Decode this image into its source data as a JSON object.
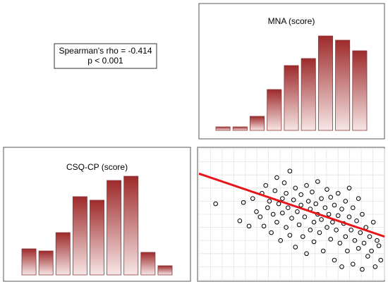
{
  "annotation": {
    "lines": [
      "Spearman's rho = -0.414",
      "p < 0.001"
    ]
  },
  "chart_data": [
    {
      "type": "bar",
      "title": "MNA (score)",
      "categories": [
        null,
        null,
        null,
        null,
        null,
        null,
        null,
        null,
        null
      ],
      "values": [
        5,
        5,
        20,
        58,
        92,
        102,
        134,
        128,
        113
      ],
      "color": "#9e2a2b",
      "ylim": [
        0,
        150
      ]
    },
    {
      "type": "bar",
      "title": "CSQ-CP (score)",
      "categories": [
        null,
        null,
        null,
        null,
        null,
        null,
        null,
        null,
        null
      ],
      "values": [
        37,
        34,
        60,
        111,
        106,
        134,
        140,
        32,
        13
      ],
      "color": "#9e2a2b",
      "ylim": [
        0,
        150
      ]
    },
    {
      "type": "scatter",
      "x": [
        9,
        22,
        24,
        27,
        29,
        31,
        33,
        34,
        35,
        36,
        37,
        38,
        39,
        40,
        41,
        42,
        42,
        43,
        44,
        45,
        45,
        46,
        47,
        47,
        48,
        49,
        49,
        50,
        51,
        52,
        52,
        53,
        54,
        55,
        55,
        56,
        57,
        58,
        58,
        59,
        60,
        60,
        61,
        62,
        62,
        63,
        64,
        64,
        65,
        66,
        66,
        67,
        68,
        69,
        69,
        70,
        71,
        71,
        72,
        73,
        73,
        74,
        75,
        75,
        76,
        77,
        77,
        78,
        79,
        79,
        80,
        81,
        81,
        82,
        83,
        83,
        84,
        85,
        86,
        86,
        87,
        88,
        88,
        89,
        90,
        91,
        92,
        93,
        94,
        95,
        96,
        97,
        98
      ],
      "y": [
        58,
        45,
        59,
        41,
        62,
        52,
        48,
        66,
        41,
        72,
        55,
        60,
        36,
        50,
        68,
        78,
        44,
        58,
        30,
        62,
        51,
        74,
        40,
        66,
        55,
        83,
        34,
        47,
        61,
        70,
        25,
        52,
        42,
        65,
        57,
        33,
        48,
        72,
        20,
        60,
        38,
        54,
        67,
        44,
        29,
        58,
        50,
        75,
        36,
        62,
        46,
        22,
        55,
        69,
        40,
        50,
        31,
        63,
        44,
        57,
        15,
        38,
        66,
        49,
        28,
        54,
        10,
        43,
        60,
        33,
        22,
        48,
        70,
        38,
        55,
        12,
        30,
        45,
        62,
        24,
        36,
        50,
        8,
        28,
        40,
        18,
        33,
        22,
        44,
        10,
        30,
        26,
        15
      ],
      "color": "#000000",
      "xlim": [
        0,
        100
      ],
      "ylim": [
        0,
        100
      ],
      "xticks": [
        0,
        6.25,
        12.5,
        18.75,
        25,
        31.25,
        37.5,
        43.75,
        50,
        56.25,
        62.5,
        68.75,
        75,
        81.25,
        87.5,
        93.75,
        100
      ],
      "yticks": [
        0,
        10,
        20,
        30,
        40,
        50,
        60,
        70,
        80,
        90,
        100
      ],
      "grid": true,
      "fit": {
        "x": [
          0,
          100
        ],
        "y": [
          81,
          33
        ],
        "color": "#e8141c"
      }
    }
  ]
}
